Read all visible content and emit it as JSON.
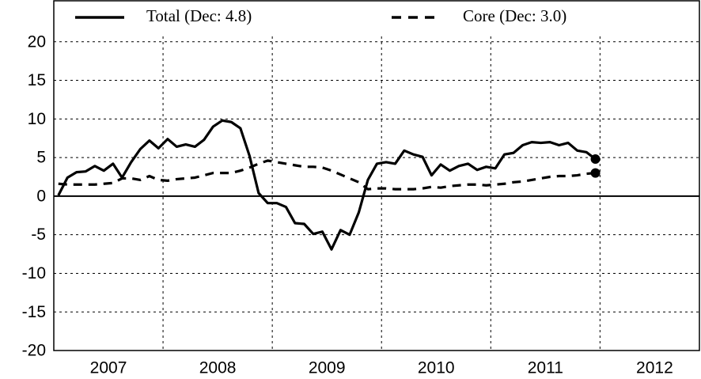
{
  "chart_data": {
    "type": "line",
    "x": [
      2007.042,
      2007.125,
      2007.208,
      2007.292,
      2007.375,
      2007.458,
      2007.542,
      2007.625,
      2007.708,
      2007.792,
      2007.875,
      2007.958,
      2008.042,
      2008.125,
      2008.208,
      2008.292,
      2008.375,
      2008.458,
      2008.542,
      2008.625,
      2008.708,
      2008.792,
      2008.875,
      2008.958,
      2009.042,
      2009.125,
      2009.208,
      2009.292,
      2009.375,
      2009.458,
      2009.542,
      2009.625,
      2009.708,
      2009.792,
      2009.875,
      2009.958,
      2010.042,
      2010.125,
      2010.208,
      2010.292,
      2010.375,
      2010.458,
      2010.542,
      2010.625,
      2010.708,
      2010.792,
      2010.875,
      2010.958,
      2011.042,
      2011.125,
      2011.208,
      2011.292,
      2011.375,
      2011.458,
      2011.542,
      2011.625,
      2011.708,
      2011.792,
      2011.875,
      2011.958
    ],
    "series": [
      {
        "name": "Total (Dec: 4.8)",
        "color": "#000000",
        "dash": false,
        "values": [
          0.1,
          2.4,
          3.1,
          3.2,
          3.9,
          3.3,
          4.2,
          2.4,
          4.4,
          6.1,
          7.2,
          6.2,
          7.4,
          6.4,
          6.7,
          6.4,
          7.3,
          9.0,
          9.8,
          9.6,
          8.8,
          5.2,
          0.4,
          -0.9,
          -0.9,
          -1.4,
          -3.5,
          -3.6,
          -4.9,
          -4.6,
          -6.9,
          -4.4,
          -5.0,
          -2.1,
          2.1,
          4.2,
          4.4,
          4.2,
          5.9,
          5.4,
          5.1,
          2.7,
          4.1,
          3.3,
          3.9,
          4.2,
          3.4,
          3.8,
          3.6,
          5.4,
          5.6,
          6.6,
          7.0,
          6.9,
          7.0,
          6.6,
          6.9,
          5.9,
          5.7,
          4.8
        ]
      },
      {
        "name": "Core (Dec: 3.0)",
        "color": "#000000",
        "dash": true,
        "values": [
          1.6,
          1.5,
          1.5,
          1.5,
          1.5,
          1.6,
          1.7,
          2.3,
          2.3,
          2.1,
          2.6,
          2.1,
          2.0,
          2.2,
          2.3,
          2.4,
          2.7,
          3.0,
          3.0,
          3.0,
          3.3,
          3.7,
          4.2,
          4.6,
          4.4,
          4.2,
          4.0,
          3.8,
          3.8,
          3.7,
          3.3,
          2.8,
          2.3,
          1.8,
          0.9,
          1.0,
          1.0,
          0.9,
          0.9,
          0.9,
          1.0,
          1.2,
          1.1,
          1.3,
          1.4,
          1.5,
          1.5,
          1.4,
          1.5,
          1.6,
          1.8,
          1.9,
          2.1,
          2.3,
          2.5,
          2.6,
          2.6,
          2.7,
          2.9,
          3.0
        ]
      }
    ],
    "end_markers": true,
    "xlim": [
      2007,
      2012.91
    ],
    "xticks": [
      {
        "value": 2007.5,
        "label": "2007"
      },
      {
        "value": 2008.5,
        "label": "2008"
      },
      {
        "value": 2009.5,
        "label": "2009"
      },
      {
        "value": 2010.5,
        "label": "2010"
      },
      {
        "value": 2011.5,
        "label": "2011"
      },
      {
        "value": 2012.5,
        "label": "2012"
      }
    ],
    "xgrid": [
      2008,
      2009,
      2010,
      2011,
      2012
    ],
    "ylim": [
      -20,
      25
    ],
    "yticks": [
      -20,
      -15,
      -10,
      -5,
      0,
      5,
      10,
      15,
      20
    ],
    "grid": true,
    "legend": "top"
  }
}
